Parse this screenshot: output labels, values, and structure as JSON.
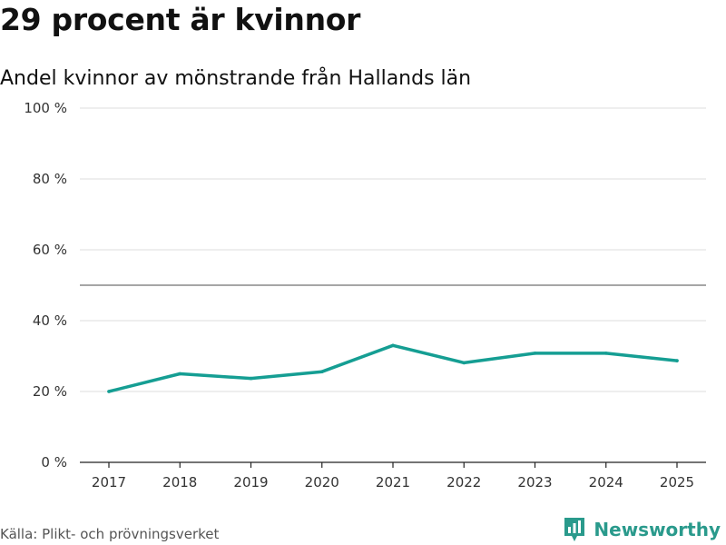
{
  "header": {
    "title": "29 procent är kvinnor",
    "subtitle": "Andel kvinnor av mönstrande från Hallands län"
  },
  "footer": {
    "source": "Källa: Plikt- och prövningsverket",
    "brand": "Newsworthy"
  },
  "colors": {
    "line": "#159e93",
    "grid": "#dddddd",
    "reference": "#888888",
    "brand": "#2a9a8c"
  },
  "chart_data": {
    "type": "line",
    "title": "29 procent är kvinnor",
    "subtitle": "Andel kvinnor av mönstrande från Hallands län",
    "xlabel": "",
    "ylabel": "",
    "categories": [
      "2017",
      "2018",
      "2019",
      "2020",
      "2021",
      "2022",
      "2023",
      "2024",
      "2025"
    ],
    "series": [
      {
        "name": "Andel kvinnor",
        "values": [
          20,
          25,
          23.7,
          25.6,
          33,
          28.1,
          30.8,
          30.8,
          28.7
        ]
      }
    ],
    "ylim": [
      0,
      100
    ],
    "yticks": [
      0,
      20,
      40,
      60,
      80,
      100
    ],
    "ytick_labels": [
      "0 %",
      "20 %",
      "40 %",
      "60 %",
      "80 %",
      "100 %"
    ],
    "reference_line": 50,
    "grid": true,
    "legend": "none"
  }
}
